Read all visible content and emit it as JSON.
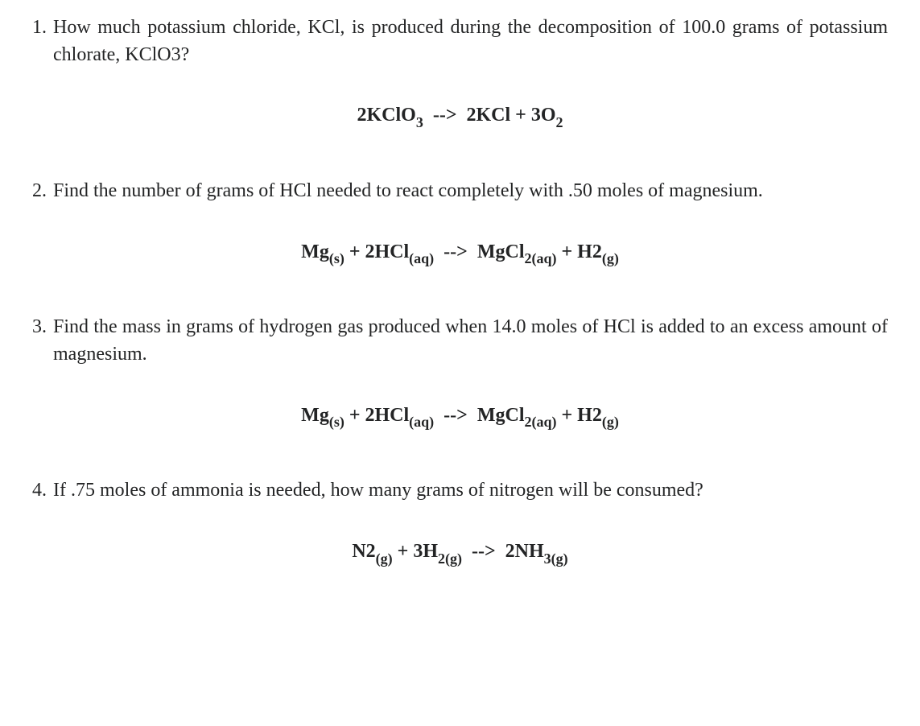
{
  "colors": {
    "text": "#232425",
    "background": "#ffffff"
  },
  "typography": {
    "body_font": "Georgia serif",
    "body_fontsize": 24,
    "equation_fontsize": 24,
    "equation_weight": "bold"
  },
  "problems": [
    {
      "number": "1.",
      "text": "How much potassium chloride, KCl, is produced during the decomposition of 100.0 grams of potassium chlorate, KClO3?",
      "equation": {
        "lhs": [
          {
            "coef": "2",
            "formula": "KClO",
            "sub_num": "3",
            "state": ""
          }
        ],
        "arrow": "-->",
        "rhs": [
          {
            "coef": "2",
            "formula": "KCl",
            "sub_num": "",
            "state": ""
          },
          {
            "coef": "3",
            "formula": "O",
            "sub_num": "2",
            "state": ""
          }
        ]
      }
    },
    {
      "number": "2.",
      "text": "Find the number of grams of HCl needed to react completely with .50 moles of magnesium.",
      "equation": {
        "lhs": [
          {
            "coef": "",
            "formula": "Mg",
            "sub_num": "",
            "state": "(s)"
          },
          {
            "coef": "2",
            "formula": "HCl",
            "sub_num": "",
            "state": "(aq)"
          }
        ],
        "arrow": "-->",
        "rhs": [
          {
            "coef": "",
            "formula": "MgCl",
            "sub_num": "2",
            "state": "(aq)"
          },
          {
            "coef": "",
            "formula": "H2",
            "sub_num": "",
            "state": "(g)"
          }
        ]
      }
    },
    {
      "number": "3.",
      "text": "Find the mass in grams of hydrogen gas produced when 14.0 moles of HCl is added to an excess amount of magnesium.",
      "equation": {
        "lhs": [
          {
            "coef": "",
            "formula": "Mg",
            "sub_num": "",
            "state": "(s)"
          },
          {
            "coef": "2",
            "formula": "HCl",
            "sub_num": "",
            "state": "(aq)"
          }
        ],
        "arrow": "-->",
        "rhs": [
          {
            "coef": "",
            "formula": "MgCl",
            "sub_num": "2",
            "state": "(aq)"
          },
          {
            "coef": "",
            "formula": "H2",
            "sub_num": "",
            "state": "(g)"
          }
        ]
      }
    },
    {
      "number": "4.",
      "text": "If .75 moles of ammonia is needed, how many grams of nitrogen will be consumed?",
      "equation": {
        "lhs": [
          {
            "coef": "",
            "formula": "N2",
            "sub_num": "",
            "state": "(g)"
          },
          {
            "coef": "3",
            "formula": "H",
            "sub_num": "2",
            "state": "(g)"
          }
        ],
        "arrow": "-->",
        "rhs": [
          {
            "coef": "2",
            "formula": "NH",
            "sub_num": "3",
            "state": "(g)"
          }
        ]
      }
    }
  ]
}
